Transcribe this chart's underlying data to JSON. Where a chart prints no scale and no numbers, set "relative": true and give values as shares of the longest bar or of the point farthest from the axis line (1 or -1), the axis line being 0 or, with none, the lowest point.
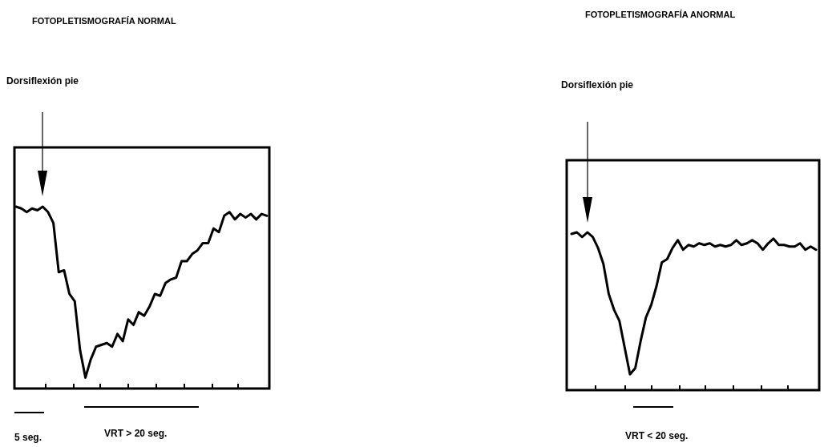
{
  "chart_data": [
    {
      "type": "line",
      "title": "FOTOPLETISMOGRAFÍA NORMAL",
      "relative": true,
      "annotations": [
        "Dorsiflexión pie",
        "5 seg.",
        "VRT > 20 seg."
      ],
      "categories": [
        null,
        null,
        null,
        null,
        null,
        null,
        null,
        null,
        null,
        null,
        null,
        null,
        null,
        null,
        null,
        null,
        null,
        null,
        null,
        null,
        null,
        null,
        null,
        null,
        null,
        null,
        null,
        null,
        null,
        null,
        null,
        null,
        null,
        null,
        null,
        null,
        null,
        null,
        null,
        null,
        null,
        null,
        null,
        null,
        null,
        null,
        null,
        null
      ],
      "series": [
        {
          "color": "#000000",
          "values": [
            1.0,
            0.99,
            0.97,
            0.99,
            0.98,
            1.0,
            0.97,
            0.91,
            0.64,
            0.65,
            0.52,
            0.48,
            0.21,
            0.06,
            0.16,
            0.23,
            0.24,
            0.25,
            0.23,
            0.3,
            0.26,
            0.38,
            0.35,
            0.42,
            0.4,
            0.45,
            0.52,
            0.51,
            0.58,
            0.6,
            0.61,
            0.7,
            0.7,
            0.74,
            0.76,
            0.8,
            0.8,
            0.88,
            0.86,
            0.95,
            0.97,
            0.93,
            0.96,
            0.94,
            0.96,
            0.93,
            0.96,
            0.95
          ]
        }
      ]
    },
    {
      "type": "line",
      "title": "FOTOPLETISMOGRAFÍA ANORMAL",
      "relative": true,
      "annotations": [
        "Dorsiflexión pie",
        "VRT < 20 seg."
      ],
      "categories": [
        null,
        null,
        null,
        null,
        null,
        null,
        null,
        null,
        null,
        null,
        null,
        null,
        null,
        null,
        null,
        null,
        null,
        null,
        null,
        null,
        null,
        null,
        null,
        null,
        null,
        null,
        null,
        null,
        null,
        null,
        null,
        null,
        null,
        null,
        null,
        null,
        null,
        null,
        null,
        null,
        null,
        null,
        null,
        null,
        null,
        null,
        null
      ],
      "series": [
        {
          "color": "#000000",
          "values": [
            0.99,
            1.0,
            0.97,
            1.0,
            0.97,
            0.9,
            0.8,
            0.61,
            0.51,
            0.44,
            0.27,
            0.1,
            0.14,
            0.31,
            0.46,
            0.54,
            0.66,
            0.81,
            0.83,
            0.9,
            0.95,
            0.89,
            0.92,
            0.91,
            0.93,
            0.92,
            0.93,
            0.91,
            0.92,
            0.91,
            0.92,
            0.95,
            0.92,
            0.93,
            0.95,
            0.93,
            0.89,
            0.93,
            0.96,
            0.92,
            0.92,
            0.91,
            0.91,
            0.93,
            0.89,
            0.91,
            0.89
          ]
        }
      ]
    }
  ]
}
